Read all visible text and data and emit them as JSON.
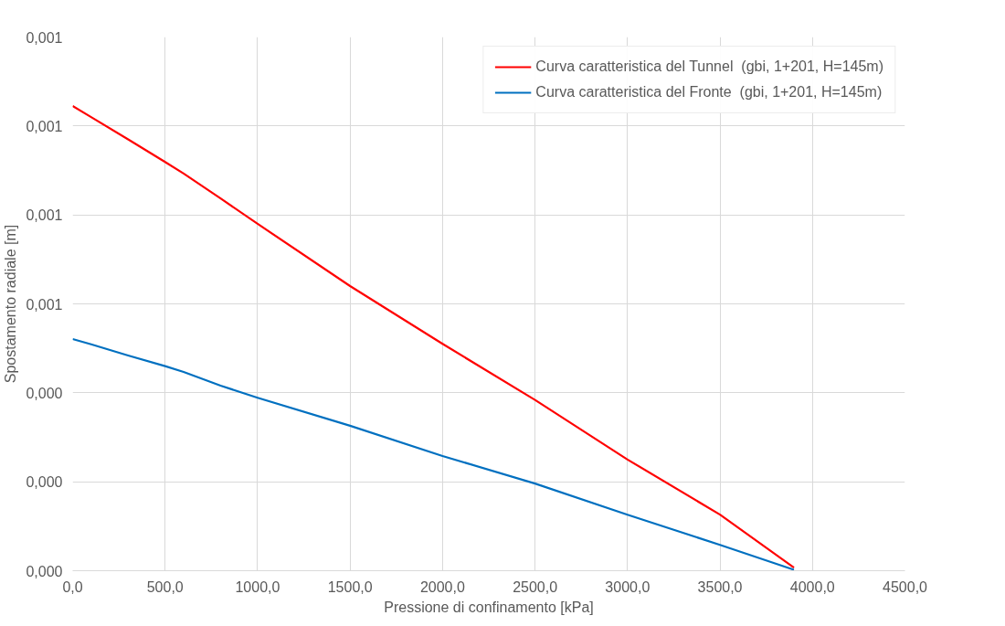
{
  "chart_data": {
    "type": "line",
    "xlabel": "Pressione di confinamento [kPa]",
    "ylabel": "Spostamento radiale [m]",
    "x": [
      0,
      100,
      300,
      500,
      600,
      800,
      1000,
      1500,
      2000,
      2500,
      3000,
      3500,
      3900
    ],
    "series": [
      {
        "name": "Curva caratteristica del Tunnel  (gbi, 1+201, H=145m)",
        "color": "#ff0000",
        "values": [
          0.001045,
          0.00102,
          0.00097,
          0.000919,
          0.000893,
          0.000837,
          0.00078,
          0.00064,
          0.00051,
          0.000384,
          0.00025,
          0.000126,
          7e-06
        ]
      },
      {
        "name": "Curva caratteristica del Fronte  (gbi, 1+201, H=145m)",
        "color": "#0070c0",
        "values": [
          0.000521,
          0.000509,
          0.000484,
          0.00046,
          0.000447,
          0.000416,
          0.000389,
          0.000326,
          0.000258,
          0.000196,
          0.000126,
          5.8e-05,
          2e-06
        ]
      }
    ],
    "xlim": [
      0,
      4500
    ],
    "xticks": [
      {
        "value": 0,
        "label": "0,0"
      },
      {
        "value": 500,
        "label": "500,0"
      },
      {
        "value": 1000,
        "label": "1000,0"
      },
      {
        "value": 1500,
        "label": "1500,0"
      },
      {
        "value": 2000,
        "label": "2000,0"
      },
      {
        "value": 2500,
        "label": "2500,0"
      },
      {
        "value": 3000,
        "label": "3000,0"
      },
      {
        "value": 3500,
        "label": "3500,0"
      },
      {
        "value": 4000,
        "label": "4000,0"
      },
      {
        "value": 4500,
        "label": "4500,0"
      }
    ],
    "ylim": [
      0,
      0.0012
    ],
    "yticks": [
      {
        "value": 0,
        "label": "0,000"
      },
      {
        "value": 0.0002,
        "label": "0,000"
      },
      {
        "value": 0.0004,
        "label": "0,000"
      },
      {
        "value": 0.0006,
        "label": "0,001"
      },
      {
        "value": 0.0008,
        "label": "0,001"
      },
      {
        "value": 0.001,
        "label": "0,001"
      },
      {
        "value": 0.0012,
        "label": "0,001"
      }
    ],
    "grid": true,
    "legend": "top right",
    "marker": "none",
    "line_style": "solid"
  }
}
